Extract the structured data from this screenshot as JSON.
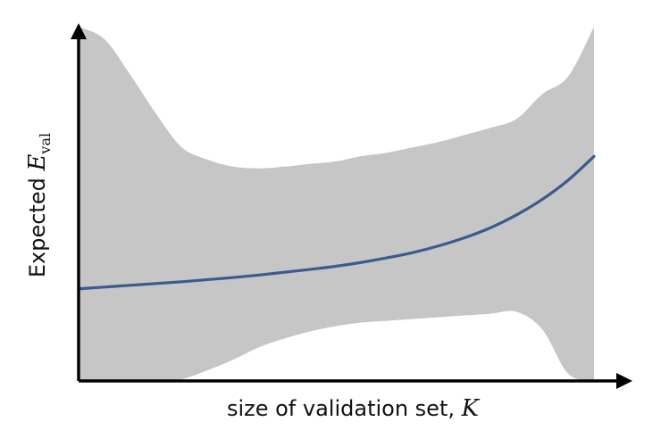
{
  "chart_data": {
    "type": "line",
    "title": "",
    "xlabel": {
      "text": "size of validation set, ",
      "math": "K"
    },
    "ylabel": {
      "text": "Expected ",
      "math": "E",
      "sub": "val"
    },
    "grid": false,
    "legend": "none",
    "x": [
      0,
      0.05,
      0.1,
      0.15,
      0.2,
      0.25,
      0.3,
      0.35,
      0.4,
      0.45,
      0.5,
      0.55,
      0.6,
      0.65,
      0.7,
      0.75,
      0.8,
      0.85,
      0.9,
      0.95,
      1
    ],
    "series": [
      {
        "values": [
          0.26,
          0.265,
          0.27,
          0.275,
          0.28,
          0.286,
          0.292,
          0.299,
          0.307,
          0.315,
          0.324,
          0.335,
          0.348,
          0.363,
          0.382,
          0.405,
          0.433,
          0.469,
          0.513,
          0.567,
          0.634
        ],
        "band": {
          "upper": [
            1.0,
            0.965,
            0.865,
            0.755,
            0.66,
            0.625,
            0.605,
            0.6,
            0.605,
            0.613,
            0.62,
            0.635,
            0.645,
            0.66,
            0.675,
            0.695,
            0.715,
            0.74,
            0.81,
            0.86,
            1.0
          ],
          "lower": [
            0.0,
            0.0,
            0.0,
            0.0,
            0.005,
            0.03,
            0.06,
            0.095,
            0.12,
            0.14,
            0.155,
            0.165,
            0.17,
            0.175,
            0.18,
            0.185,
            0.19,
            0.195,
            0.145,
            0.02,
            0.0
          ]
        }
      }
    ],
    "xlim": [
      0,
      1
    ],
    "ylim": [
      0,
      1
    ],
    "colors": {
      "line": "#3a5b8f",
      "band": "#c6c6c6",
      "axis": "#000000"
    }
  }
}
